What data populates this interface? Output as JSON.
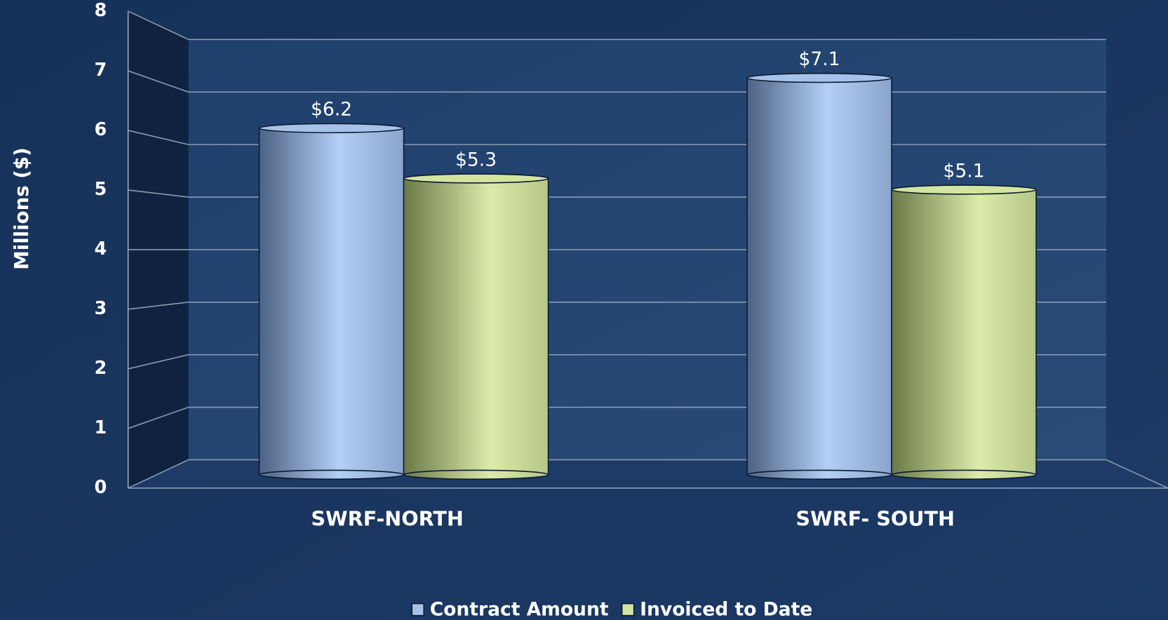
{
  "chart_data": {
    "type": "bar3d",
    "categories": [
      "SWRF-NORTH",
      "SWRF- SOUTH"
    ],
    "series": [
      {
        "name": "Contract Amount",
        "color": "#a7c2ea",
        "values": [
          6.2,
          7.1
        ],
        "value_labels": [
          "$6.2",
          "$7.1"
        ]
      },
      {
        "name": "Invoiced to Date",
        "color": "#d3e4a0",
        "values": [
          5.3,
          5.1
        ],
        "value_labels": [
          "$5.3",
          "$5.1"
        ]
      }
    ],
    "y_label": "Millions ($)",
    "ylim": [
      0,
      8
    ],
    "yticks": [
      0,
      1,
      2,
      3,
      4,
      5,
      6,
      7,
      8
    ],
    "grid": true,
    "legend": "bottom"
  }
}
